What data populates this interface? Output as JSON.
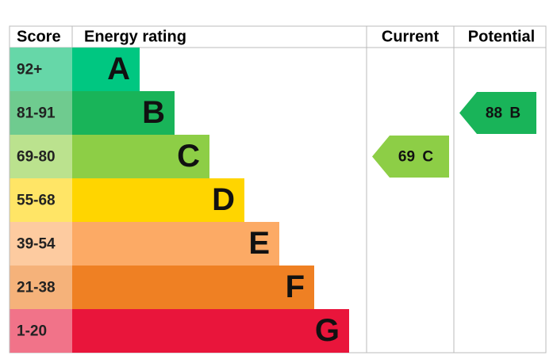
{
  "header": {
    "score": "Score",
    "rating": "Energy rating",
    "current": "Current",
    "potential": "Potential"
  },
  "bands": [
    {
      "score": "92+",
      "letter": "A",
      "color": "#00c781",
      "light": "#66d7a8"
    },
    {
      "score": "81-91",
      "letter": "B",
      "color": "#19b459",
      "light": "#6fcb8f"
    },
    {
      "score": "69-80",
      "letter": "C",
      "color": "#8dce46",
      "light": "#bbe28e"
    },
    {
      "score": "55-68",
      "letter": "D",
      "color": "#ffd500",
      "light": "#ffe566"
    },
    {
      "score": "39-54",
      "letter": "E",
      "color": "#fcaa65",
      "light": "#fdcba0"
    },
    {
      "score": "21-38",
      "letter": "F",
      "color": "#ef8023",
      "light": "#f5b27a"
    },
    {
      "score": "1-20",
      "letter": "G",
      "color": "#e9153b",
      "light": "#f17389"
    }
  ],
  "current": {
    "value": 69,
    "letter": "C"
  },
  "potential": {
    "value": 88,
    "letter": "B"
  }
}
